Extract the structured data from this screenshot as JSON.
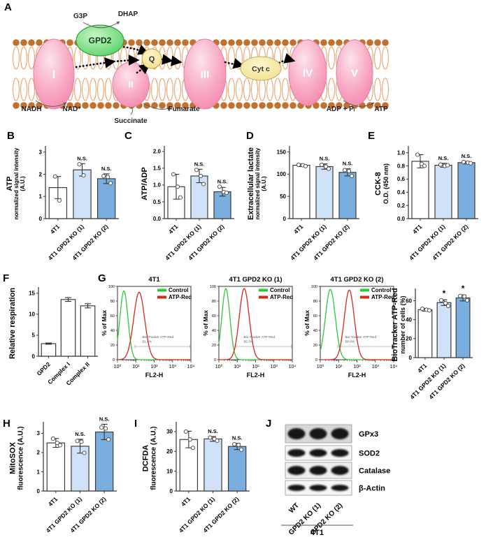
{
  "panels": {
    "A": "A",
    "B": "B",
    "C": "C",
    "D": "D",
    "E": "E",
    "F": "F",
    "G": "G",
    "H": "H",
    "I": "I",
    "J": "J"
  },
  "panelA": {
    "labels": {
      "g3p": "G3P",
      "dhap": "DHAP",
      "gpd2": "GPD2",
      "q": "Q",
      "cytc": "Cyt c",
      "c1": "I",
      "c2": "II",
      "c3": "III",
      "c4": "IV",
      "c5": "V",
      "nadh": "NADH",
      "nad": "NAD⁺",
      "succinate": "Succinate",
      "fumarate": "Fumarate",
      "adp": "ADP + Pᵢ",
      "atp": "ATP"
    },
    "colors": {
      "lipid_head": "#c2702e",
      "lipid_tail": "#eb9a60",
      "complex_fill": "#f6a0bd",
      "complex_stroke": "#e87ea4",
      "gpd2_fill": "#5ed46c",
      "gpd2_stroke": "#2f9e44",
      "quinone_fill": "#f7e9a8",
      "quinone_stroke": "#c9a227"
    }
  },
  "chart_data": [
    {
      "id": "B",
      "type": "bar",
      "panel": "B",
      "ylabel_main": "ATP",
      "ylabel_sub": "normalized signal intensity\n(A.U.)",
      "sub_size": 8,
      "categories": [
        "4T1",
        "4T1 GPD2 KO (1)",
        "4T1 GPD2 KO (2)"
      ],
      "values": [
        1.4,
        2.2,
        1.8
      ],
      "errors": [
        0.5,
        0.28,
        0.22
      ],
      "points": [
        [
          1.9,
          0.82
        ],
        [
          2.45,
          1.95
        ],
        [
          1.92,
          1.88,
          1.6
        ]
      ],
      "sig": [
        "",
        "N.S.",
        "N.S."
      ],
      "yticks": [
        "0",
        "1",
        "2",
        "3"
      ],
      "ytick_vals": [
        0,
        1,
        2,
        3
      ],
      "ylim": [
        0,
        3.15
      ],
      "bar_colors": [
        "#ffffff",
        "#cfe2f7",
        "#79aede"
      ]
    },
    {
      "id": "C",
      "type": "bar",
      "panel": "C",
      "ylabel_main": "ATP/ADP",
      "ylabel_sub": "",
      "sub_size": 8,
      "categories": [
        "4T1",
        "4T1 GPD2 KO (1)",
        "4T1 GPD2 KO (2)"
      ],
      "values": [
        0.95,
        1.27,
        0.8
      ],
      "errors": [
        0.37,
        0.2,
        0.13
      ],
      "points": [
        [
          1.32,
          0.95,
          0.63
        ],
        [
          1.45,
          1.27,
          1.03
        ],
        [
          0.95,
          0.79,
          0.77
        ]
      ],
      "sig": [
        "",
        "N.S.",
        "N.S."
      ],
      "yticks": [
        "0.0",
        "0.5",
        "1.0",
        "1.5",
        "2.0"
      ],
      "ytick_vals": [
        0,
        0.5,
        1,
        1.5,
        2
      ],
      "ylim": [
        0,
        2.08
      ],
      "bar_colors": [
        "#ffffff",
        "#cfe2f7",
        "#79aede"
      ]
    },
    {
      "id": "D",
      "type": "bar",
      "panel": "D",
      "ylabel_main": "Extracellular lactate",
      "ylabel_sub": "normalized signal intensity\n(A.U.)",
      "sub_size": 8,
      "categories": [
        "4T1",
        "4T1 GPD2 KO (1)",
        "4T1 GPD2 KO (2)"
      ],
      "values": [
        120,
        117,
        104
      ],
      "errors": [
        3,
        6,
        8
      ],
      "points": [
        [
          121,
          120,
          118
        ],
        [
          121,
          117,
          112
        ],
        [
          109,
          107,
          96
        ]
      ],
      "sig": [
        "",
        "N.S.",
        "N.S."
      ],
      "yticks": [
        "0",
        "50",
        "100",
        "150"
      ],
      "ytick_vals": [
        0,
        50,
        100,
        150
      ],
      "ylim": [
        0,
        157
      ],
      "bar_colors": [
        "#ffffff",
        "#cfe2f7",
        "#79aede"
      ]
    },
    {
      "id": "E",
      "type": "bar",
      "panel": "E",
      "ylabel_main": "CCK-8",
      "ylabel_sub": "O.D. (450 nm)",
      "sub_size": 9,
      "categories": [
        "4T1",
        "4T1 GPD2 KO (1)",
        "4T1 GPD2 KO (2)"
      ],
      "values": [
        0.87,
        0.81,
        0.85
      ],
      "errors": [
        0.1,
        0.03,
        0.02
      ],
      "points": [
        [
          0.97,
          0.83,
          0.8
        ],
        [
          0.82,
          0.8,
          0.81
        ],
        [
          0.86,
          0.85,
          0.84
        ]
      ],
      "sig": [
        "",
        "N.S.",
        "N.S."
      ],
      "yticks": [
        "0.0",
        "0.2",
        "0.4",
        "0.6",
        "0.8",
        "1.0"
      ],
      "ytick_vals": [
        0,
        0.2,
        0.4,
        0.6,
        0.8,
        1
      ],
      "ylim": [
        0,
        1.06
      ],
      "bar_colors": [
        "#ffffff",
        "#cfe2f7",
        "#79aede"
      ]
    },
    {
      "id": "F",
      "type": "bar",
      "panel": "F",
      "ylabel_main": "Relative respiration",
      "ylabel_sub": "",
      "sub_size": 8,
      "categories": [
        "GPD2",
        "Complex I",
        "Complex II"
      ],
      "values": [
        3,
        13.5,
        12
      ],
      "errors": [
        0.15,
        0.45,
        0.5
      ],
      "points": [
        [],
        [],
        []
      ],
      "sig": [
        "",
        "",
        ""
      ],
      "yticks": [
        "0",
        "5",
        "10",
        "15"
      ],
      "ytick_vals": [
        0,
        5,
        10,
        15
      ],
      "ylim": [
        0,
        15.8
      ],
      "bar_colors": [
        "#ffffff",
        "#ffffff",
        "#ffffff"
      ]
    },
    {
      "id": "GB",
      "type": "bar",
      "panel": "G",
      "ylabel_main": "BioTracker ATP-Red",
      "ylabel_sub": "number of cells (%)",
      "sub_size": 9,
      "categories": [
        "4T1",
        "4T1 GPD2 KO (1)",
        "4T1 GPD2 KO (2)"
      ],
      "values": [
        50.5,
        58,
        63
      ],
      "errors": [
        1.5,
        3,
        3.2
      ],
      "points": [
        [
          51.5,
          50.5,
          49.8
        ],
        [
          60.5,
          57.5,
          54.5
        ],
        [
          65,
          64.5,
          60.5
        ]
      ],
      "sig": [
        "",
        "*",
        "*"
      ],
      "yticks": [
        "0",
        "20",
        "40",
        "60"
      ],
      "ytick_vals": [
        0,
        20,
        40,
        60
      ],
      "ylim": [
        0,
        70
      ],
      "bar_colors": [
        "#ffffff",
        "#cfe2f7",
        "#79aede"
      ]
    },
    {
      "id": "H",
      "type": "bar",
      "panel": "H",
      "ylabel_main": "MitoSOX",
      "ylabel_sub": "fluorescence (A.U.)",
      "sub_size": 10,
      "categories": [
        "4T1",
        "4T1 GPD2 KO (1)",
        "4T1 GPD2 KO (2)"
      ],
      "values": [
        2.5,
        2.33,
        3.07
      ],
      "errors": [
        0.23,
        0.36,
        0.4
      ],
      "points": [
        [
          2.72,
          2.5,
          2.38
        ],
        [
          2.6,
          2.56,
          1.98
        ],
        [
          3.3,
          3.25,
          2.68
        ]
      ],
      "sig": [
        "",
        "N.S.",
        "N.S."
      ],
      "yticks": [
        "0",
        "1",
        "2",
        "3"
      ],
      "ytick_vals": [
        0,
        1,
        2,
        3
      ],
      "ylim": [
        0,
        3.45
      ],
      "bar_colors": [
        "#ffffff",
        "#cfe2f7",
        "#79aede"
      ]
    },
    {
      "id": "I",
      "type": "bar",
      "panel": "I",
      "ylabel_main": "DCFDA",
      "ylabel_sub": "fluorescence (A.U.)",
      "sub_size": 10,
      "categories": [
        "4T1",
        "4T1 GPD2 KO (1)",
        "4T1 GPD2 KO (2)"
      ],
      "values": [
        26,
        26.3,
        22.5
      ],
      "errors": [
        4.2,
        1.2,
        1.6
      ],
      "points": [
        [
          30,
          26,
          21.8
        ],
        [
          27,
          26.3,
          25.4
        ],
        [
          23.6,
          23.3,
          20.9
        ]
      ],
      "sig": [
        "",
        "N.S.",
        "N.S."
      ],
      "yticks": [
        "0",
        "10",
        "20",
        "30"
      ],
      "ytick_vals": [
        0,
        10,
        20,
        30
      ],
      "ylim": [
        0,
        33.5
      ],
      "bar_colors": [
        "#ffffff",
        "#cfe2f7",
        "#79aede"
      ]
    },
    {
      "id": "G1",
      "type": "flow",
      "panel": "G",
      "title": "4T1",
      "xlabel": "FL2-H",
      "ylabel": "% of Max",
      "xticks": [
        "10⁰",
        "10¹",
        "10²",
        "10³",
        "10⁴"
      ],
      "yticks": [
        0,
        20,
        40,
        60,
        80,
        100
      ],
      "legend": [
        {
          "label": "Control",
          "color": "#2bc93a"
        },
        {
          "label": "ATP-Red",
          "color": "#d8281c"
        }
      ],
      "curves": [
        {
          "name": "Control",
          "color": "#2bc93a",
          "center": 0.35,
          "sd": 0.22,
          "peak": 94
        },
        {
          "name": "ATP-Red",
          "color": "#d8281c",
          "center": 1.18,
          "sd": 0.3,
          "peak": 92
        }
      ],
      "gate": {
        "label": "Bio Tracker ATP-Red",
        "percent": "51.9%",
        "y": 18,
        "x0": 0.95,
        "x1": 3.95
      }
    },
    {
      "id": "G2",
      "type": "flow",
      "panel": "G",
      "title": "4T1 GPD2 KO (1)",
      "xlabel": "FL2-H",
      "ylabel": "% of Max",
      "xticks": [
        "10⁰",
        "10¹",
        "10²",
        "10³",
        "10⁴"
      ],
      "yticks": [
        0,
        20,
        40,
        60,
        80,
        100
      ],
      "legend": [
        {
          "label": "Control",
          "color": "#2bc93a"
        },
        {
          "label": "ATP-Red",
          "color": "#d8281c"
        }
      ],
      "curves": [
        {
          "name": "Control",
          "color": "#2bc93a",
          "center": 0.38,
          "sd": 0.22,
          "peak": 97
        },
        {
          "name": "ATP-Red",
          "color": "#d8281c",
          "center": 1.38,
          "sd": 0.27,
          "peak": 97
        }
      ],
      "gate": {
        "label": "Bio Tracker ATP-Red",
        "percent": "55.3%",
        "y": 18,
        "x0": 0.95,
        "x1": 3.95
      }
    },
    {
      "id": "G3",
      "type": "flow",
      "panel": "G",
      "title": "4T1 GPD2 KO (2)",
      "xlabel": "FL2-H",
      "ylabel": "% of Max",
      "xticks": [
        "10⁰",
        "10¹",
        "10²",
        "10³",
        "10⁴"
      ],
      "yticks": [
        0,
        20,
        40,
        60,
        80,
        100
      ],
      "legend": [
        {
          "label": "Control",
          "color": "#2bc93a"
        },
        {
          "label": "ATP-Red",
          "color": "#d8281c"
        }
      ],
      "curves": [
        {
          "name": "Control",
          "color": "#2bc93a",
          "center": 0.55,
          "sd": 0.27,
          "peak": 96
        },
        {
          "name": "ATP-Red",
          "color": "#d8281c",
          "center": 1.58,
          "sd": 0.27,
          "peak": 95
        }
      ],
      "gate": {
        "label": "Bio Tracker ATP-Red",
        "percent": "58.6%",
        "y": 18,
        "x0": 0.95,
        "x1": 3.95
      }
    }
  ],
  "blot": {
    "targets": [
      "GPx3",
      "SOD2",
      "Catalase",
      "β-Actin"
    ],
    "lanes": [
      "WT",
      "GPD2 KO (1)",
      "GPD2 KO (2)"
    ],
    "group": "4T1"
  }
}
